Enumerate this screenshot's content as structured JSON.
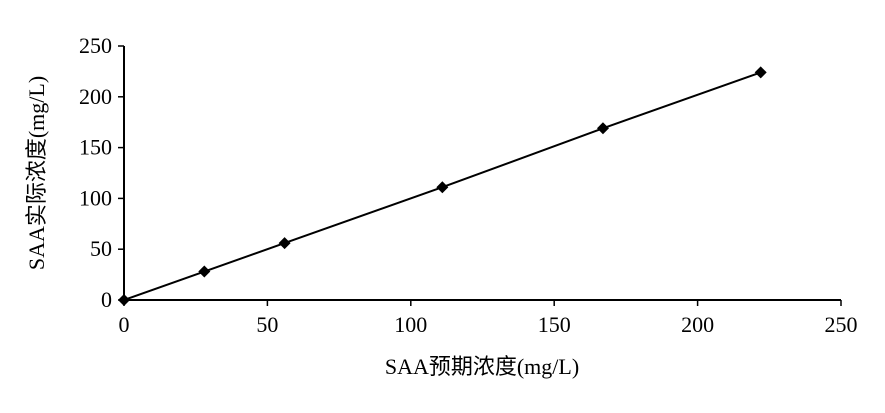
{
  "chart_data": {
    "type": "line",
    "x_label": "SAA预期浓度(mg/L)",
    "y_label": "SAA实际浓度(mg/L)",
    "x": [
      0,
      28,
      56,
      111,
      167,
      222
    ],
    "series": [
      {
        "color": "#000000",
        "values": [
          0,
          28,
          56,
          111,
          169,
          224
        ]
      }
    ],
    "xlim": [
      0,
      250
    ],
    "xticks": [
      0,
      50,
      100,
      150,
      200,
      250
    ],
    "ylim": [
      0,
      250
    ],
    "yticks": [
      0,
      50,
      100,
      150,
      200,
      250
    ],
    "grid": false
  }
}
